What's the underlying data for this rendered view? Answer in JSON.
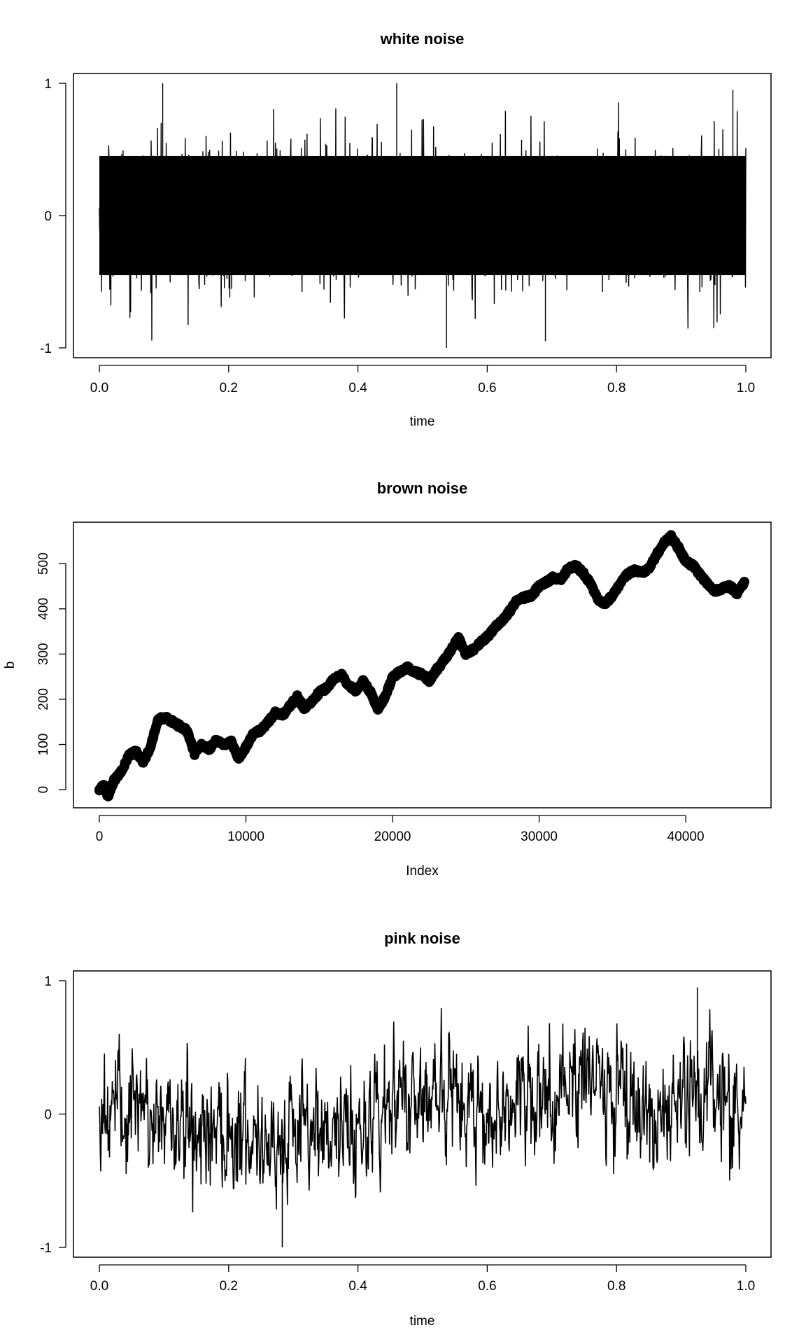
{
  "chart_data": [
    {
      "type": "line",
      "title": "white noise",
      "xlabel": "time",
      "ylabel": "",
      "xlim": [
        0.0,
        1.0
      ],
      "ylim": [
        -1,
        1
      ],
      "xticks": [
        "0.0",
        "0.2",
        "0.4",
        "0.6",
        "0.8",
        "1.0"
      ],
      "yticks": [
        "-1",
        "0",
        "1"
      ],
      "series": [
        {
          "style": "dense noise, approx. symmetric around 0",
          "typical_range": [
            -0.55,
            0.55
          ],
          "min": -1.0,
          "max": 1.0,
          "color": "#000000"
        }
      ]
    },
    {
      "type": "scatter",
      "title": "brown noise",
      "xlabel": "Index",
      "ylabel": "b",
      "xlim": [
        0,
        44100
      ],
      "ylim": [
        -20,
        570
      ],
      "xticks": [
        "0",
        "10000",
        "20000",
        "30000",
        "40000"
      ],
      "yticks": [
        "0",
        "100",
        "200",
        "300",
        "400",
        "500"
      ],
      "series": [
        {
          "style": "thick point trace (random walk)",
          "color": "#000000",
          "x": [
            0,
            300,
            600,
            1000,
            1500,
            2000,
            2500,
            3000,
            3500,
            4000,
            4500,
            5000,
            5500,
            6000,
            6500,
            7000,
            7500,
            8000,
            8500,
            9000,
            9500,
            10000,
            10500,
            11000,
            11500,
            12000,
            12500,
            13000,
            13500,
            14000,
            14500,
            15000,
            15500,
            16000,
            16500,
            17000,
            17500,
            18000,
            18500,
            19000,
            19500,
            20000,
            20500,
            21000,
            21500,
            22000,
            22500,
            23000,
            23500,
            24000,
            24500,
            25000,
            25500,
            26000,
            26500,
            27000,
            27500,
            28000,
            28500,
            29000,
            29500,
            30000,
            30500,
            31000,
            31500,
            32000,
            32500,
            33000,
            33500,
            34000,
            34500,
            35000,
            35500,
            36000,
            36500,
            37000,
            37500,
            38000,
            38500,
            39000,
            39500,
            40000,
            40500,
            41000,
            41500,
            42000,
            42500,
            43000,
            43500,
            44000
          ],
          "y": [
            0,
            10,
            -15,
            20,
            40,
            75,
            85,
            60,
            95,
            155,
            160,
            150,
            140,
            130,
            80,
            100,
            90,
            110,
            100,
            105,
            70,
            95,
            125,
            130,
            150,
            170,
            165,
            185,
            205,
            180,
            195,
            215,
            225,
            245,
            255,
            230,
            220,
            240,
            215,
            180,
            205,
            250,
            260,
            270,
            260,
            255,
            240,
            265,
            285,
            310,
            335,
            300,
            310,
            325,
            340,
            360,
            375,
            395,
            420,
            425,
            430,
            450,
            460,
            470,
            465,
            490,
            495,
            480,
            455,
            420,
            410,
            430,
            455,
            475,
            485,
            480,
            490,
            520,
            545,
            560,
            535,
            505,
            495,
            475,
            455,
            440,
            445,
            450,
            435,
            460
          ]
        }
      ]
    },
    {
      "type": "line",
      "title": "pink noise",
      "xlabel": "time",
      "ylabel": "",
      "xlim": [
        0.0,
        1.0
      ],
      "ylim": [
        -1,
        1
      ],
      "xticks": [
        "0.0",
        "0.2",
        "0.4",
        "0.6",
        "0.8",
        "1.0"
      ],
      "yticks": [
        "-1",
        "0",
        "1"
      ],
      "series": [
        {
          "style": "noise with slow drifting mean",
          "color": "#000000",
          "trend_x": [
            0.0,
            0.05,
            0.1,
            0.15,
            0.2,
            0.25,
            0.3,
            0.35,
            0.4,
            0.45,
            0.5,
            0.55,
            0.6,
            0.65,
            0.7,
            0.75,
            0.8,
            0.85,
            0.87,
            0.9,
            0.95,
            1.0
          ],
          "trend_y": [
            0.05,
            0.0,
            -0.05,
            -0.1,
            -0.1,
            -0.15,
            -0.2,
            -0.1,
            -0.1,
            0.05,
            0.2,
            0.1,
            0.0,
            0.1,
            0.05,
            0.3,
            0.2,
            -0.05,
            -0.2,
            0.1,
            0.2,
            0.0
          ],
          "min": -1.0,
          "max": 0.95
        }
      ]
    }
  ]
}
